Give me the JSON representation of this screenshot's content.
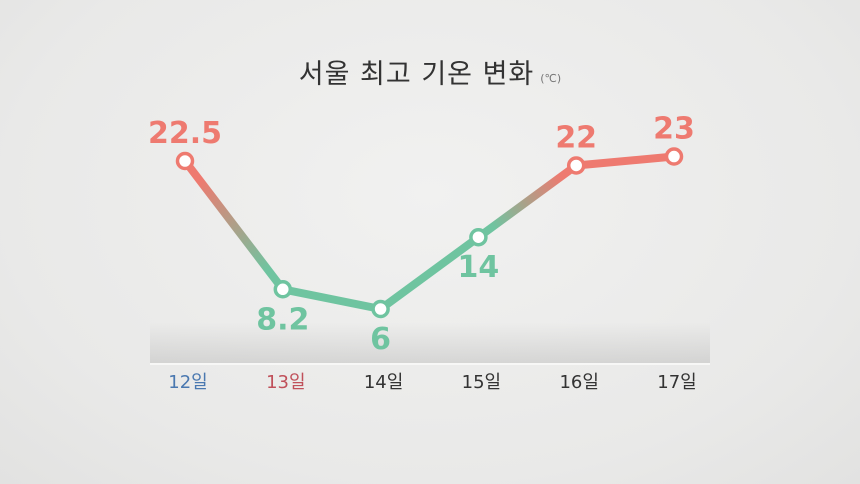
{
  "chart_data": {
    "type": "line",
    "title": "서울 최고 기온 변화",
    "unit": "(℃)",
    "categories": [
      "12일",
      "13일",
      "14일",
      "15일",
      "16일",
      "17일"
    ],
    "values": [
      22.5,
      8.2,
      6,
      14,
      22,
      23
    ],
    "value_labels": [
      "22.5",
      "8.2",
      "6",
      "14",
      "22",
      "23"
    ],
    "label_positions": [
      "above",
      "below",
      "below",
      "below",
      "above",
      "above"
    ],
    "category_colors": [
      "#4a78b0",
      "#c0505a",
      "#333333",
      "#333333",
      "#333333",
      "#333333"
    ],
    "colors": {
      "warm": "#ee7a70",
      "cool": "#6fc4a0",
      "background": "#ebebea"
    },
    "warm_threshold": 18,
    "grid": false,
    "legend": "none"
  }
}
